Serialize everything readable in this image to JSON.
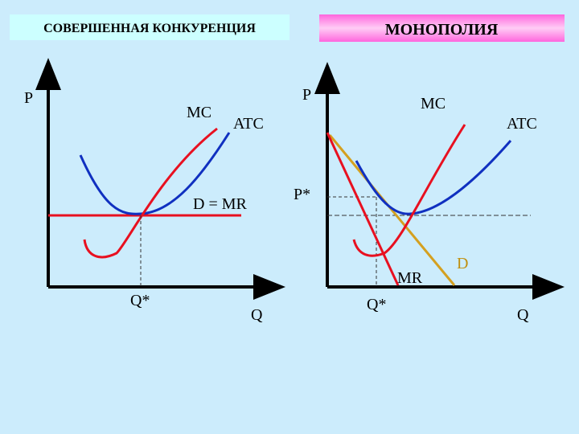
{
  "header": {
    "left_title": "СОВЕРШЕННАЯ КОНКУРЕНЦИЯ",
    "right_title": "МОНОПОЛИЯ"
  },
  "left_chart": {
    "y_axis": "P",
    "x_axis": "Q",
    "mc": "MC",
    "atc": "ATC",
    "demand": "D = MR",
    "q_star": "Q*"
  },
  "right_chart": {
    "y_axis": "P",
    "x_axis": "Q",
    "mc": "MC",
    "atc": "ATC",
    "p_star": "P*",
    "mr": "MR",
    "demand": "D",
    "q_star": "Q*"
  }
}
